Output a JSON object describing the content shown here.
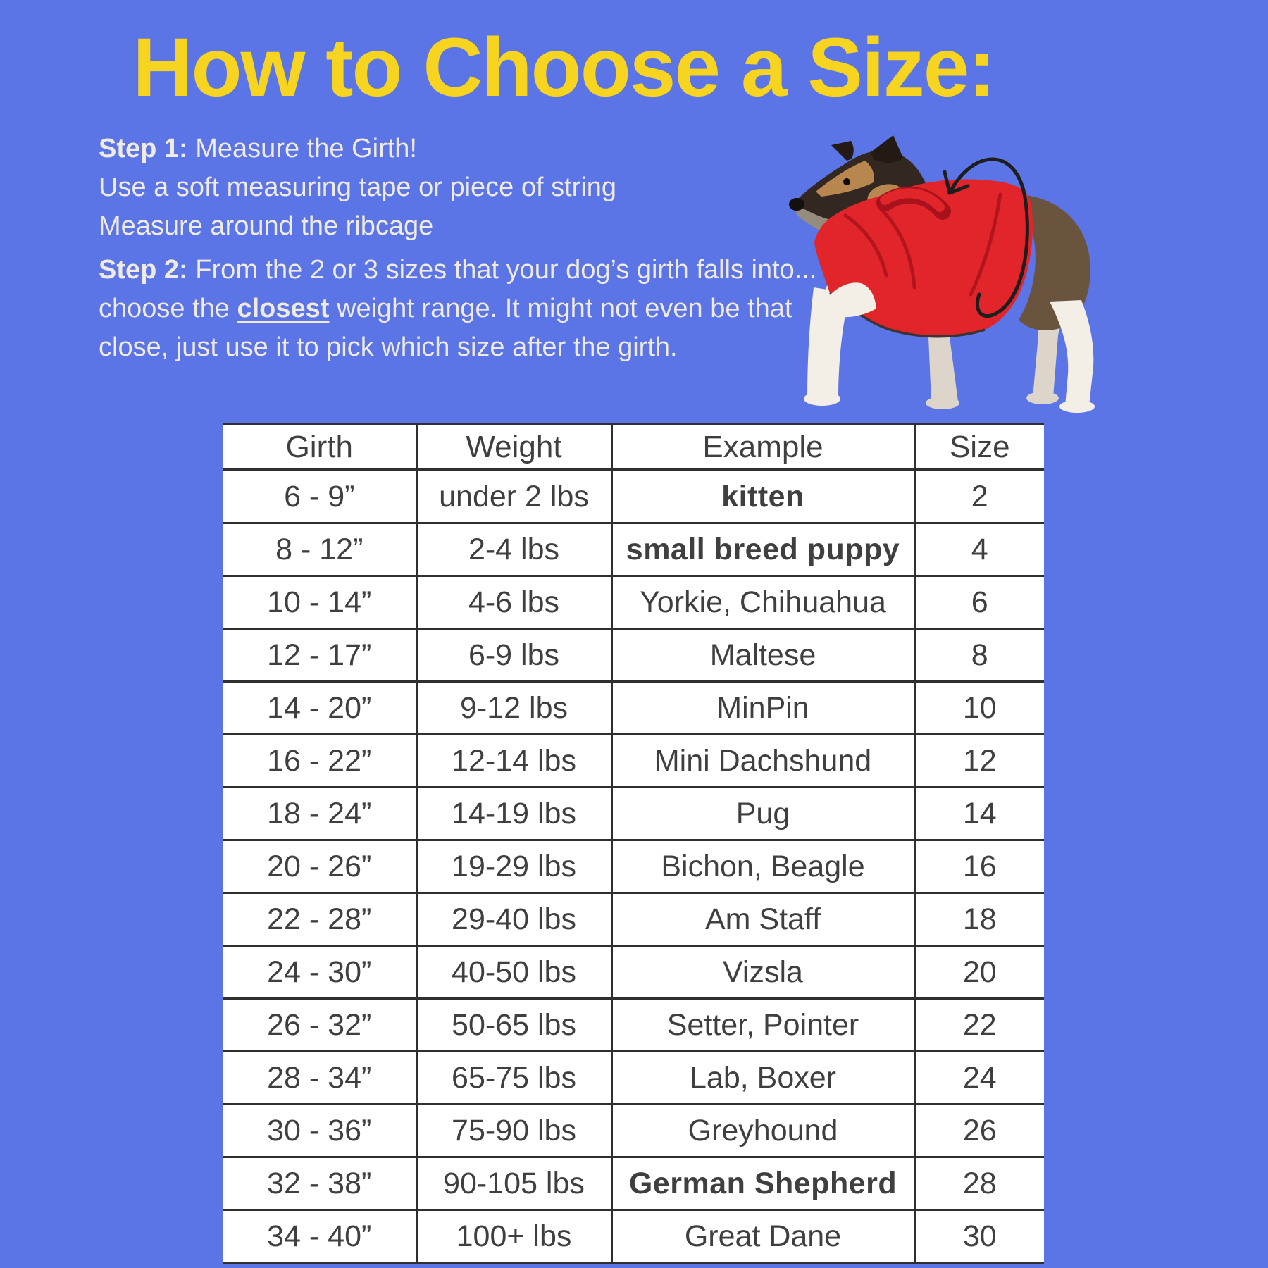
{
  "page": {
    "title": "How to Choose a Size:",
    "background_color": "#5b74e6",
    "title_color": "#f7d41f",
    "body_text_color": "#efeae2"
  },
  "instructions": {
    "step1_label": "Step 1:",
    "step1_text": " Measure the Girth!",
    "line2": "Use a soft measuring tape or piece of string",
    "line3": "Measure around the ribcage",
    "step2_label": "Step 2:",
    "step2_before": " From the 2 or 3 sizes that your dog’s girth falls into... choose the ",
    "step2_emphasis": "closest",
    "step2_after": " weight range. It might not even be that close, just use it to pick which size after the girth."
  },
  "illustration": {
    "description": "Dog wearing a red fleece vest with an arrow circling its girth",
    "vest_color": "#e2242b",
    "arrow_color": "#1e1e1e"
  },
  "table": {
    "border_color": "#2f2f2f",
    "headers": [
      "Girth",
      "Weight",
      "Example",
      "Size"
    ],
    "rows": [
      {
        "girth": "6 - 9”",
        "weight": "under 2 lbs",
        "example": "kitten",
        "size": "2",
        "brand": true
      },
      {
        "girth": "8 - 12”",
        "weight": "2-4 lbs",
        "example": "small breed puppy",
        "size": "4",
        "brand": true
      },
      {
        "girth": "10 - 14”",
        "weight": "4-6 lbs",
        "example": "Yorkie, Chihuahua",
        "size": "6",
        "brand": false
      },
      {
        "girth": "12 - 17”",
        "weight": "6-9 lbs",
        "example": "Maltese",
        "size": "8",
        "brand": false
      },
      {
        "girth": "14 - 20”",
        "weight": "9-12 lbs",
        "example": "MinPin",
        "size": "10",
        "brand": false
      },
      {
        "girth": "16 - 22”",
        "weight": "12-14 lbs",
        "example": "Mini Dachshund",
        "size": "12",
        "brand": false
      },
      {
        "girth": "18 - 24”",
        "weight": "14-19 lbs",
        "example": "Pug",
        "size": "14",
        "brand": false
      },
      {
        "girth": "20 - 26”",
        "weight": "19-29 lbs",
        "example": "Bichon, Beagle",
        "size": "16",
        "brand": false
      },
      {
        "girth": "22 - 28”",
        "weight": "29-40 lbs",
        "example": "Am Staff",
        "size": "18",
        "brand": false
      },
      {
        "girth": "24 - 30”",
        "weight": "40-50 lbs",
        "example": "Vizsla",
        "size": "20",
        "brand": false
      },
      {
        "girth": "26 - 32”",
        "weight": "50-65 lbs",
        "example": "Setter, Pointer",
        "size": "22",
        "brand": false
      },
      {
        "girth": "28 - 34”",
        "weight": "65-75 lbs",
        "example": "Lab, Boxer",
        "size": "24",
        "brand": false
      },
      {
        "girth": "30 - 36”",
        "weight": "75-90 lbs",
        "example": "Greyhound",
        "size": "26",
        "brand": false
      },
      {
        "girth": "32 - 38”",
        "weight": "90-105 lbs",
        "example": "German Shepherd",
        "size": "28",
        "brand": true
      },
      {
        "girth": "34 - 40”",
        "weight": "100+ lbs",
        "example": "Great Dane",
        "size": "30",
        "brand": false
      }
    ]
  }
}
